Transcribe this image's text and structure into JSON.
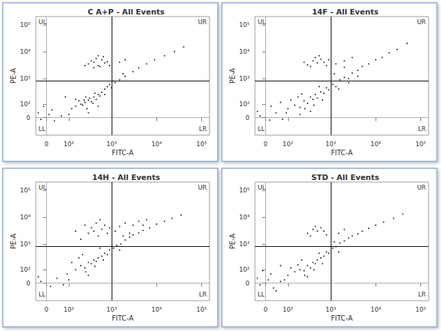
{
  "chart_data": [
    {
      "type": "scatter",
      "title": "C A+P - All Events",
      "x_label": "FITC-A",
      "y_label": "PE-A",
      "log": true,
      "color": "#000000",
      "marker": "circle",
      "xlim": [
        -40,
        150000
      ],
      "ylim": [
        -150,
        200000
      ],
      "xticks": [
        0,
        {
          "value": 100,
          "label": "10²"
        },
        {
          "value": 1000,
          "label": "10³"
        },
        {
          "value": 10000,
          "label": "10⁴"
        },
        {
          "value": 100000,
          "label": "10⁵"
        }
      ],
      "yticks": [
        0,
        {
          "value": 100,
          "label": "10²"
        },
        {
          "value": 1000,
          "label": "10³"
        },
        {
          "value": 10000,
          "label": "10⁴"
        },
        {
          "value": 100000,
          "label": "10⁵"
        }
      ],
      "gate_x": 1000,
      "gate_y": 800,
      "quadrant_labels": [
        "UL",
        "UR",
        "LL",
        "LR"
      ],
      "points": [
        [
          150,
          80
        ],
        [
          200,
          100
        ],
        [
          250,
          120
        ],
        [
          300,
          150
        ],
        [
          350,
          130
        ],
        [
          180,
          140
        ],
        [
          220,
          90
        ],
        [
          400,
          200
        ],
        [
          280,
          60
        ],
        [
          320,
          180
        ],
        [
          450,
          160
        ],
        [
          500,
          250
        ],
        [
          260,
          200
        ],
        [
          380,
          110
        ],
        [
          600,
          300
        ],
        [
          700,
          400
        ],
        [
          550,
          220
        ],
        [
          150,
          160
        ],
        [
          120,
          60
        ],
        [
          240,
          150
        ],
        [
          420,
          280
        ],
        [
          800,
          500
        ],
        [
          900,
          600
        ],
        [
          1200,
          700
        ],
        [
          1500,
          900
        ],
        [
          2000,
          1200
        ],
        [
          3000,
          1800
        ],
        [
          4000,
          2500
        ],
        [
          6000,
          3500
        ],
        [
          9000,
          5000
        ],
        [
          15000,
          7000
        ],
        [
          25000,
          10000
        ],
        [
          40000,
          15000
        ],
        [
          1000,
          450
        ],
        [
          700,
          250
        ],
        [
          1100,
          800
        ],
        [
          1800,
          1500
        ],
        [
          300,
          3500
        ],
        [
          400,
          4000
        ],
        [
          500,
          3000
        ],
        [
          600,
          5000
        ],
        [
          350,
          4500
        ],
        [
          700,
          3800
        ],
        [
          450,
          5500
        ],
        [
          550,
          2800
        ],
        [
          800,
          4200
        ],
        [
          250,
          3000
        ],
        [
          650,
          6500
        ],
        [
          900,
          3000
        ],
        [
          400,
          2500
        ],
        [
          500,
          7000
        ],
        [
          1500,
          4000
        ],
        [
          2000,
          5000
        ],
        [
          -20,
          -10
        ],
        [
          10,
          20
        ],
        [
          -30,
          30
        ],
        [
          30,
          -20
        ],
        [
          60,
          10
        ],
        [
          20,
          50
        ],
        [
          -10,
          80
        ],
        [
          100,
          20
        ],
        [
          80,
          200
        ],
        [
          300,
          30
        ],
        [
          500,
          80
        ]
      ]
    },
    {
      "type": "scatter",
      "title": "14F - All Events",
      "x_label": "FITC-A",
      "y_label": "PE-A",
      "log": true,
      "color": "#000000",
      "marker": "circle",
      "xlim": [
        -40,
        150000
      ],
      "ylim": [
        -150,
        200000
      ],
      "xticks": [
        0,
        {
          "value": 100,
          "label": "10²"
        },
        {
          "value": 1000,
          "label": "10³"
        },
        {
          "value": 10000,
          "label": "10⁴"
        },
        {
          "value": 100000,
          "label": "10⁵"
        }
      ],
      "yticks": [
        0,
        {
          "value": 100,
          "label": "10²"
        },
        {
          "value": 1000,
          "label": "10³"
        },
        {
          "value": 10000,
          "label": "10⁴"
        },
        {
          "value": 100000,
          "label": "10⁵"
        }
      ],
      "gate_x": 1000,
      "gate_y": 800,
      "quadrant_labels": [
        "UL",
        "UR",
        "LL",
        "LR"
      ],
      "points": [
        [
          100,
          60
        ],
        [
          150,
          90
        ],
        [
          200,
          70
        ],
        [
          250,
          140
        ],
        [
          300,
          110
        ],
        [
          350,
          200
        ],
        [
          400,
          160
        ],
        [
          450,
          250
        ],
        [
          500,
          180
        ],
        [
          600,
          320
        ],
        [
          700,
          280
        ],
        [
          800,
          450
        ],
        [
          900,
          380
        ],
        [
          1100,
          600
        ],
        [
          1300,
          500
        ],
        [
          1600,
          900
        ],
        [
          2000,
          1100
        ],
        [
          2500,
          1000
        ],
        [
          3000,
          1600
        ],
        [
          4000,
          2000
        ],
        [
          5000,
          2800
        ],
        [
          7000,
          3500
        ],
        [
          10000,
          5000
        ],
        [
          14000,
          6000
        ],
        [
          20000,
          9000
        ],
        [
          30000,
          12000
        ],
        [
          50000,
          20000
        ],
        [
          180,
          200
        ],
        [
          260,
          60
        ],
        [
          420,
          90
        ],
        [
          650,
          150
        ],
        [
          1500,
          400
        ],
        [
          2500,
          700
        ],
        [
          4000,
          1200
        ],
        [
          120,
          150
        ],
        [
          220,
          260
        ],
        [
          550,
          500
        ],
        [
          1200,
          1500
        ],
        [
          2000,
          2600
        ],
        [
          300,
          3200
        ],
        [
          400,
          4500
        ],
        [
          500,
          3800
        ],
        [
          600,
          5200
        ],
        [
          350,
          2800
        ],
        [
          700,
          4000
        ],
        [
          450,
          6000
        ],
        [
          800,
          3000
        ],
        [
          250,
          4000
        ],
        [
          900,
          5000
        ],
        [
          550,
          7000
        ],
        [
          1300,
          3500
        ],
        [
          2000,
          4500
        ],
        [
          3000,
          6000
        ],
        [
          -20,
          10
        ],
        [
          15,
          -15
        ],
        [
          -30,
          40
        ],
        [
          40,
          30
        ],
        [
          70,
          -10
        ],
        [
          20,
          80
        ],
        [
          60,
          120
        ],
        [
          90,
          30
        ],
        [
          200,
          20
        ],
        [
          350,
          40
        ]
      ]
    },
    {
      "type": "scatter",
      "title": "14H - All Events",
      "x_label": "FITC-A",
      "y_label": "PE-A",
      "log": true,
      "color": "#000000",
      "marker": "circle",
      "xlim": [
        -40,
        150000
      ],
      "ylim": [
        -150,
        200000
      ],
      "xticks": [
        0,
        {
          "value": 100,
          "label": "10²"
        },
        {
          "value": 1000,
          "label": "10³"
        },
        {
          "value": 10000,
          "label": "10⁴"
        },
        {
          "value": 100000,
          "label": "10⁵"
        }
      ],
      "yticks": [
        0,
        {
          "value": 100,
          "label": "10²"
        },
        {
          "value": 1000,
          "label": "10³"
        },
        {
          "value": 10000,
          "label": "10⁴"
        },
        {
          "value": 100000,
          "label": "10⁵"
        }
      ],
      "gate_x": 1000,
      "gate_y": 800,
      "quadrant_labels": [
        "UL",
        "UR",
        "LL",
        "LR"
      ],
      "points": [
        [
          150,
          100
        ],
        [
          200,
          150
        ],
        [
          250,
          120
        ],
        [
          300,
          200
        ],
        [
          350,
          180
        ],
        [
          400,
          250
        ],
        [
          450,
          220
        ],
        [
          500,
          300
        ],
        [
          600,
          350
        ],
        [
          700,
          450
        ],
        [
          800,
          400
        ],
        [
          900,
          600
        ],
        [
          1100,
          700
        ],
        [
          1300,
          900
        ],
        [
          1600,
          1000
        ],
        [
          2000,
          1400
        ],
        [
          2500,
          1800
        ],
        [
          3000,
          2200
        ],
        [
          4000,
          2600
        ],
        [
          5000,
          3200
        ],
        [
          7000,
          4000
        ],
        [
          10000,
          5500
        ],
        [
          15000,
          7000
        ],
        [
          22000,
          9000
        ],
        [
          35000,
          12000
        ],
        [
          180,
          300
        ],
        [
          260,
          80
        ],
        [
          420,
          140
        ],
        [
          650,
          250
        ],
        [
          1500,
          600
        ],
        [
          120,
          200
        ],
        [
          220,
          400
        ],
        [
          550,
          700
        ],
        [
          200,
          1500
        ],
        [
          300,
          2500
        ],
        [
          400,
          3000
        ],
        [
          500,
          2000
        ],
        [
          600,
          3500
        ],
        [
          350,
          4000
        ],
        [
          700,
          5000
        ],
        [
          450,
          6000
        ],
        [
          800,
          2500
        ],
        [
          250,
          5000
        ],
        [
          900,
          4000
        ],
        [
          550,
          8000
        ],
        [
          150,
          3000
        ],
        [
          1200,
          3000
        ],
        [
          1500,
          4500
        ],
        [
          2000,
          6000
        ],
        [
          3000,
          5000
        ],
        [
          4000,
          7000
        ],
        [
          6000,
          8000
        ],
        [
          2500,
          2500
        ],
        [
          1800,
          2000
        ],
        [
          5000,
          5000
        ],
        [
          -20,
          10
        ],
        [
          15,
          -20
        ],
        [
          -30,
          40
        ],
        [
          40,
          30
        ],
        [
          70,
          -10
        ],
        [
          90,
          60
        ],
        [
          100,
          20
        ],
        [
          300,
          50
        ]
      ]
    },
    {
      "type": "scatter",
      "title": "STD - All Events",
      "x_label": "FITC-A",
      "y_label": "PE-A",
      "log": true,
      "color": "#000000",
      "marker": "circle",
      "xlim": [
        -40,
        150000
      ],
      "ylim": [
        -150,
        200000
      ],
      "xticks": [
        0,
        {
          "value": 100,
          "label": "10²"
        },
        {
          "value": 1000,
          "label": "10³"
        },
        {
          "value": 10000,
          "label": "10⁴"
        },
        {
          "value": 100000,
          "label": "10⁵"
        }
      ],
      "yticks": [
        0,
        {
          "value": 100,
          "label": "10²"
        },
        {
          "value": 1000,
          "label": "10³"
        },
        {
          "value": 10000,
          "label": "10⁴"
        },
        {
          "value": 100000,
          "label": "10⁵"
        }
      ],
      "gate_x": 1000,
      "gate_y": 800,
      "quadrant_labels": [
        "UL",
        "UR",
        "LL",
        "LR"
      ],
      "points": [
        [
          100,
          50
        ],
        [
          150,
          80
        ],
        [
          200,
          100
        ],
        [
          250,
          90
        ],
        [
          300,
          150
        ],
        [
          350,
          120
        ],
        [
          400,
          200
        ],
        [
          450,
          180
        ],
        [
          500,
          250
        ],
        [
          600,
          300
        ],
        [
          700,
          350
        ],
        [
          800,
          500
        ],
        [
          900,
          450
        ],
        [
          1100,
          700
        ],
        [
          1300,
          800
        ],
        [
          1600,
          1100
        ],
        [
          2000,
          1300
        ],
        [
          2500,
          1700
        ],
        [
          3000,
          2000
        ],
        [
          4000,
          2400
        ],
        [
          5000,
          3000
        ],
        [
          7000,
          3800
        ],
        [
          10000,
          5000
        ],
        [
          15000,
          6500
        ],
        [
          25000,
          9000
        ],
        [
          40000,
          13000
        ],
        [
          180,
          160
        ],
        [
          260,
          50
        ],
        [
          420,
          100
        ],
        [
          650,
          180
        ],
        [
          1500,
          500
        ],
        [
          120,
          120
        ],
        [
          220,
          250
        ],
        [
          550,
          450
        ],
        [
          1200,
          1200
        ],
        [
          300,
          2500
        ],
        [
          400,
          3500
        ],
        [
          500,
          3000
        ],
        [
          600,
          4000
        ],
        [
          350,
          2000
        ],
        [
          700,
          3000
        ],
        [
          800,
          2200
        ],
        [
          450,
          4500
        ],
        [
          1500,
          2500
        ],
        [
          2000,
          3500
        ],
        [
          -20,
          -10
        ],
        [
          10,
          20
        ],
        [
          -30,
          30
        ],
        [
          30,
          -30
        ],
        [
          60,
          10
        ],
        [
          20,
          60
        ],
        [
          -10,
          90
        ],
        [
          80,
          20
        ],
        [
          60,
          150
        ],
        [
          300,
          40
        ],
        [
          40,
          -50
        ]
      ]
    }
  ]
}
